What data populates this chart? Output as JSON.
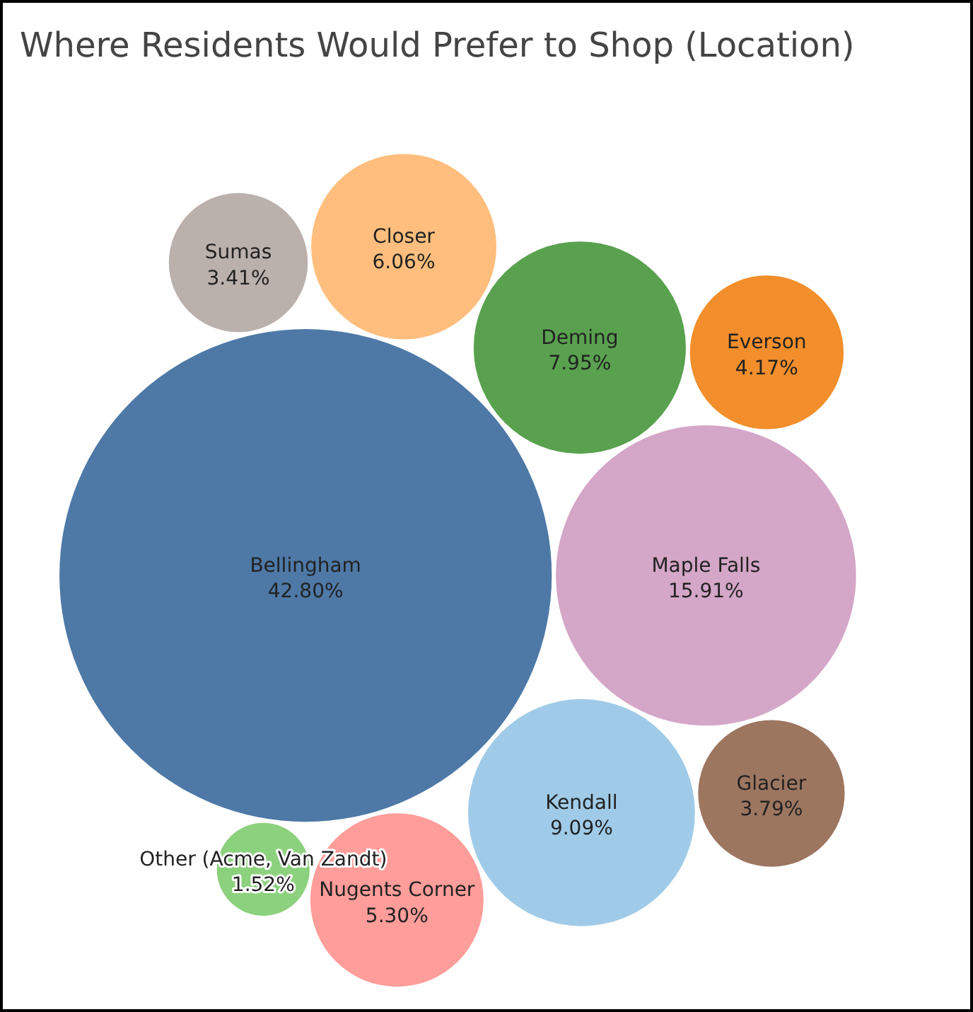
{
  "chart_data": {
    "type": "other",
    "title": "Where Residents Would Prefer to Shop (Location)",
    "categories": [
      "Bellingham",
      "Maple Falls",
      "Kendall",
      "Deming",
      "Closer",
      "Nugents Corner",
      "Everson",
      "Glacier",
      "Sumas",
      "Other (Acme, Van Zandt)"
    ],
    "values": [
      42.8,
      15.91,
      9.09,
      7.95,
      6.06,
      5.3,
      4.17,
      3.79,
      3.41,
      1.52
    ],
    "value_labels": [
      "42.80%",
      "15.91%",
      "9.09%",
      "7.95%",
      "6.06%",
      "5.30%",
      "4.17%",
      "3.79%",
      "3.41%",
      "1.52%"
    ],
    "colors": [
      "#4e79a7",
      "#d4a6c8",
      "#a0cbe8",
      "#59a14f",
      "#ffbe7d",
      "#ff9d9a",
      "#f28e2b",
      "#9d7660",
      "#bab0ac",
      "#8cd17d"
    ]
  }
}
